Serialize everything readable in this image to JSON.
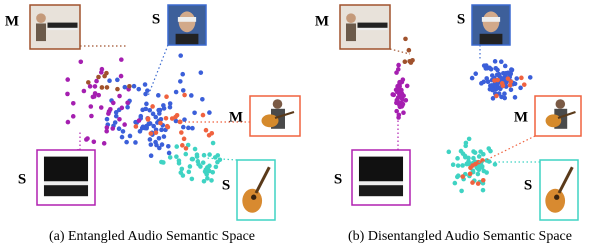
{
  "panels": [
    {
      "caption": "(a) Entangled Audio Semantic Space",
      "insets": [
        {
          "label": "M"
        },
        {
          "label": "S"
        },
        {
          "label": "M"
        },
        {
          "label": "S"
        },
        {
          "label": "S"
        }
      ]
    },
    {
      "caption": "(b) Disentangled Audio Semantic Space",
      "insets": [
        {
          "label": "M"
        },
        {
          "label": "S"
        },
        {
          "label": "M"
        },
        {
          "label": "S"
        },
        {
          "label": "S"
        }
      ]
    }
  ]
}
